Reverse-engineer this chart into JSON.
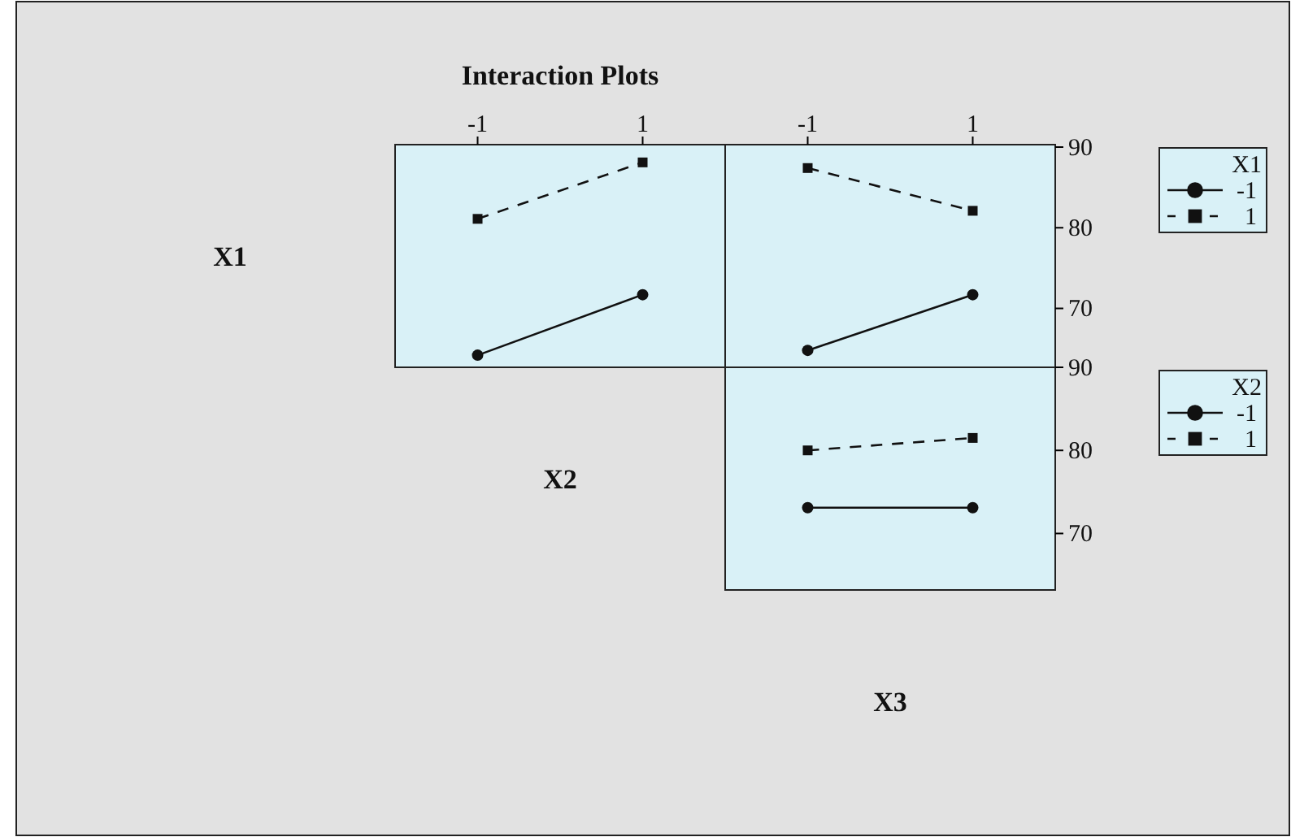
{
  "chart_data": [
    {
      "type": "line",
      "title": "Interaction Plots",
      "ylabel": "X1",
      "xlabel": "X2",
      "categories": [
        "-1",
        "1"
      ],
      "ylim": [
        62.7,
        90.3
      ],
      "tick_labels": "x",
      "legend": false,
      "grid": false,
      "series": [
        {
          "color": "#111111",
          "values": [
            64.2,
            71.7
          ],
          "marker": "circle",
          "line_style": "solid"
        },
        {
          "color": "#111111",
          "values": [
            81.1,
            88.1
          ],
          "marker": "square",
          "line_style": "dashed"
        }
      ]
    },
    {
      "type": "line",
      "categories": [
        "-1",
        "1"
      ],
      "ylim": [
        62.7,
        90.3
      ],
      "yticks": [
        70,
        80,
        90
      ],
      "legend": "right",
      "legend_title": "X1",
      "grid": false,
      "series": [
        {
          "name": "-1",
          "color": "#111111",
          "values": [
            64.8,
            71.7
          ],
          "marker": "circle",
          "line_style": "solid"
        },
        {
          "name": "1",
          "color": "#111111",
          "values": [
            87.4,
            82.1
          ],
          "marker": "square",
          "line_style": "dashed"
        }
      ]
    },
    {
      "type": "line",
      "xlabel": "X3",
      "categories": [
        null,
        null
      ],
      "ylim": [
        63.2,
        90
      ],
      "yticks": [
        70,
        80,
        90
      ],
      "tick_labels": "y",
      "legend": "right",
      "legend_title": "X2",
      "grid": false,
      "series": [
        {
          "name": "-1",
          "color": "#111111",
          "values": [
            73.1,
            73.1
          ],
          "marker": "circle",
          "line_style": "solid"
        },
        {
          "name": "1",
          "color": "#111111",
          "values": [
            80.0,
            81.5
          ],
          "marker": "square",
          "line_style": "dashed"
        }
      ]
    }
  ]
}
